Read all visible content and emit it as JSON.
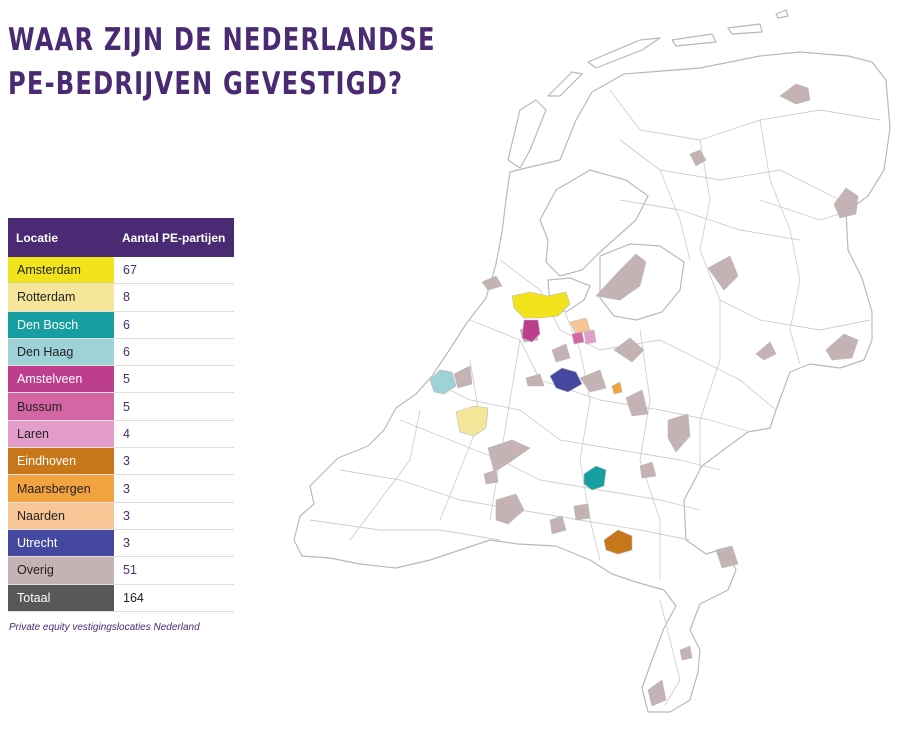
{
  "title": {
    "line1": "WAAR ZIJN DE NEDERLANDSE",
    "line2": "PE-BEDRIJVEN GEVESTIGD?"
  },
  "table": {
    "header_location": "Locatie",
    "header_count": "Aantal PE-partijen",
    "rows": [
      {
        "location": "Amsterdam",
        "count": "67",
        "color": "#f2e41c",
        "text_color": "#222222"
      },
      {
        "location": "Rotterdam",
        "count": "8",
        "color": "#f5e69a",
        "text_color": "#222222"
      },
      {
        "location": "Den Bosch",
        "count": "6",
        "color": "#169ea0",
        "text_color": "#ffffff"
      },
      {
        "location": "Den Haag",
        "count": "6",
        "color": "#9dd3d7",
        "text_color": "#222222"
      },
      {
        "location": "Amstelveen",
        "count": "5",
        "color": "#be3e8e",
        "text_color": "#ffffff"
      },
      {
        "location": "Bussum",
        "count": "5",
        "color": "#d466a4",
        "text_color": "#222222"
      },
      {
        "location": "Laren",
        "count": "4",
        "color": "#e39dc8",
        "text_color": "#222222"
      },
      {
        "location": "Eindhoven",
        "count": "3",
        "color": "#c8761a",
        "text_color": "#ffffff"
      },
      {
        "location": "Maarsbergen",
        "count": "3",
        "color": "#f2a23e",
        "text_color": "#222222"
      },
      {
        "location": "Naarden",
        "count": "3",
        "color": "#f8c595",
        "text_color": "#222222"
      },
      {
        "location": "Utrecht",
        "count": "3",
        "color": "#4448a0",
        "text_color": "#ffffff"
      },
      {
        "location": "Overig",
        "count": "51",
        "color": "#c5b2b4",
        "text_color": "#222222"
      }
    ],
    "total": {
      "location": "Totaal",
      "count": "164",
      "color": "#58585a",
      "text_color": "#ffffff"
    }
  },
  "caption": "Private equity vestigingslocaties Nederland",
  "colors": {
    "brand_purple": "#4a2a73",
    "overig": "#c5b2b4",
    "border": "#b9b9b9"
  }
}
